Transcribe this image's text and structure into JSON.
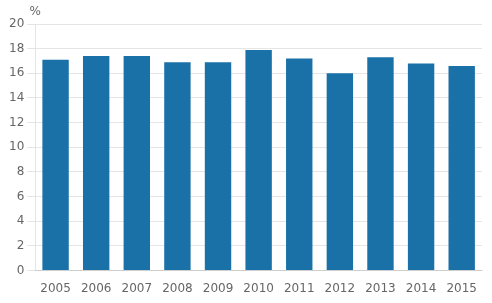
{
  "chart_data": {
    "type": "bar",
    "ylabel": "%",
    "categories": [
      "2005",
      "2006",
      "2007",
      "2008",
      "2009",
      "2010",
      "2011",
      "2012",
      "2013",
      "2014",
      "2015"
    ],
    "values": [
      17.1,
      17.4,
      17.4,
      16.9,
      16.9,
      17.9,
      17.2,
      16.0,
      17.3,
      16.8,
      16.6
    ],
    "color": "#1a71a7",
    "ylim": [
      0,
      20
    ],
    "yticks": [
      0,
      2,
      4,
      6,
      8,
      10,
      12,
      14,
      16,
      18,
      20
    ],
    "grid": true
  }
}
